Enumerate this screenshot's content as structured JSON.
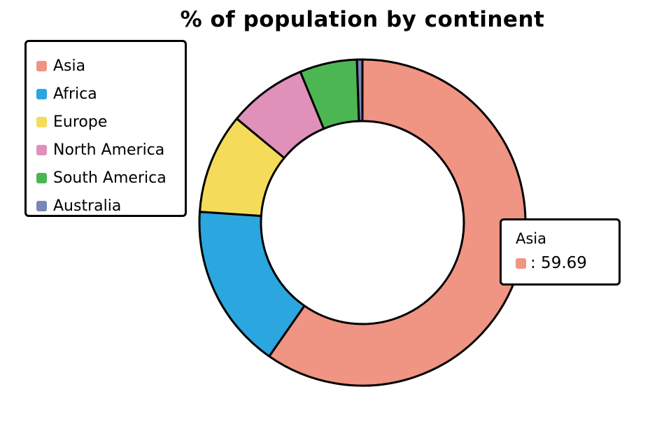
{
  "chart_data": {
    "type": "pie",
    "title": "% of population by continent",
    "categories": [
      "Asia",
      "Africa",
      "Europe",
      "North America",
      "South America",
      "Australia"
    ],
    "values": [
      59.69,
      16.36,
      9.94,
      7.79,
      5.68,
      0.54
    ],
    "colors": [
      "#f09483",
      "#2ba6de",
      "#f4dc5a",
      "#e091b9",
      "#4cb653",
      "#7987b8"
    ],
    "donut": true,
    "legend_position": "top-left",
    "tooltip": {
      "title": "Asia",
      "value_text": ": 59.69",
      "color": "#f09483"
    }
  }
}
